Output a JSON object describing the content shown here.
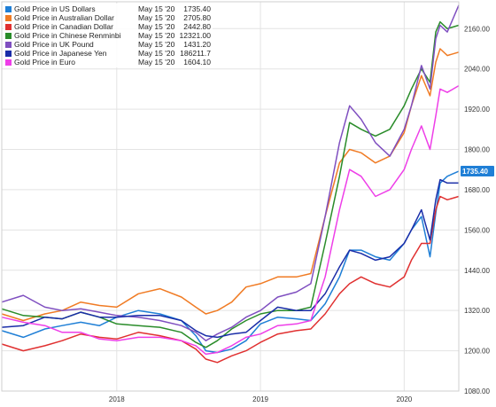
{
  "chart_data": {
    "type": "line",
    "grid": true,
    "legend_position": "top-left",
    "y_axis_position": "right",
    "ylim": [
      1080,
      2240
    ],
    "y_ticks": [
      "1080.00",
      "1200.00",
      "1320.00",
      "1440.00",
      "1560.00",
      "1680.00",
      "1800.00",
      "1920.00",
      "2040.00",
      "2160.00"
    ],
    "x_ticks": [
      "2018",
      "2019",
      "2020"
    ],
    "x_range": [
      2017.2,
      2020.38
    ],
    "current_label": {
      "value": "1735.40",
      "color": "#1f7fd6"
    },
    "series": [
      {
        "name": "Gold Price in US Dollars",
        "date": "May 15 '20",
        "last": "1735.40",
        "color": "#1f7fd6",
        "x": [
          2017.2,
          2017.35,
          2017.5,
          2017.62,
          2017.75,
          2017.88,
          2018.0,
          2018.15,
          2018.3,
          2018.45,
          2018.55,
          2018.62,
          2018.7,
          2018.8,
          2018.9,
          2019.0,
          2019.12,
          2019.25,
          2019.35,
          2019.45,
          2019.55,
          2019.62,
          2019.7,
          2019.8,
          2019.9,
          2020.0,
          2020.05,
          2020.12,
          2020.18,
          2020.22,
          2020.25,
          2020.3,
          2020.38
        ],
        "y": [
          1260,
          1240,
          1265,
          1275,
          1285,
          1275,
          1300,
          1320,
          1310,
          1290,
          1245,
          1200,
          1195,
          1205,
          1230,
          1280,
          1300,
          1295,
          1290,
          1340,
          1420,
          1500,
          1500,
          1480,
          1470,
          1520,
          1560,
          1600,
          1480,
          1610,
          1700,
          1720,
          1735
        ]
      },
      {
        "name": "Gold Price in Australian Dollar",
        "date": "May 15 '20",
        "last": "2705.80",
        "color": "#f07b24",
        "x": [
          2017.2,
          2017.35,
          2017.5,
          2017.62,
          2017.75,
          2017.88,
          2018.0,
          2018.15,
          2018.3,
          2018.45,
          2018.55,
          2018.62,
          2018.7,
          2018.8,
          2018.9,
          2019.0,
          2019.12,
          2019.25,
          2019.35,
          2019.45,
          2019.55,
          2019.62,
          2019.7,
          2019.8,
          2019.9,
          2020.0,
          2020.05,
          2020.12,
          2020.18,
          2020.22,
          2020.25,
          2020.3,
          2020.38
        ],
        "y": [
          1310,
          1290,
          1310,
          1320,
          1345,
          1335,
          1330,
          1370,
          1385,
          1360,
          1330,
          1310,
          1320,
          1345,
          1390,
          1400,
          1420,
          1420,
          1430,
          1600,
          1760,
          1800,
          1790,
          1760,
          1780,
          1850,
          1930,
          2020,
          1960,
          2060,
          2100,
          2080,
          2090
        ]
      },
      {
        "name": "Gold Price in Canadian Dollar",
        "date": "May 15 '20",
        "last": "2442.80",
        "color": "#e03030",
        "x": [
          2017.2,
          2017.35,
          2017.5,
          2017.62,
          2017.75,
          2017.88,
          2018.0,
          2018.15,
          2018.3,
          2018.45,
          2018.55,
          2018.62,
          2018.7,
          2018.8,
          2018.9,
          2019.0,
          2019.12,
          2019.25,
          2019.35,
          2019.45,
          2019.55,
          2019.62,
          2019.7,
          2019.8,
          2019.9,
          2020.0,
          2020.05,
          2020.12,
          2020.18,
          2020.22,
          2020.25,
          2020.3,
          2020.38
        ],
        "y": [
          1220,
          1200,
          1215,
          1230,
          1250,
          1240,
          1235,
          1255,
          1245,
          1230,
          1205,
          1175,
          1165,
          1185,
          1200,
          1225,
          1250,
          1260,
          1265,
          1310,
          1370,
          1400,
          1420,
          1400,
          1390,
          1420,
          1470,
          1520,
          1520,
          1620,
          1660,
          1650,
          1660
        ]
      },
      {
        "name": "Gold Price in Chinese Renminbi",
        "date": "May 15 '20",
        "last": "12321.00",
        "color": "#2a8c2a",
        "x": [
          2017.2,
          2017.35,
          2017.5,
          2017.62,
          2017.75,
          2017.88,
          2018.0,
          2018.15,
          2018.3,
          2018.45,
          2018.55,
          2018.62,
          2018.7,
          2018.8,
          2018.9,
          2019.0,
          2019.12,
          2019.25,
          2019.35,
          2019.45,
          2019.55,
          2019.62,
          2019.7,
          2019.8,
          2019.9,
          2020.0,
          2020.05,
          2020.12,
          2020.18,
          2020.22,
          2020.25,
          2020.3,
          2020.38
        ],
        "y": [
          1325,
          1305,
          1300,
          1295,
          1315,
          1300,
          1280,
          1275,
          1270,
          1255,
          1225,
          1210,
          1230,
          1265,
          1290,
          1310,
          1320,
          1320,
          1330,
          1520,
          1720,
          1880,
          1860,
          1840,
          1860,
          1930,
          1980,
          2040,
          2000,
          2150,
          2180,
          2160,
          2170
        ]
      },
      {
        "name": "Gold Price in UK Pound",
        "date": "May 15 '20",
        "last": "1431.20",
        "color": "#7f4fc0",
        "x": [
          2017.2,
          2017.35,
          2017.5,
          2017.62,
          2017.75,
          2017.88,
          2018.0,
          2018.15,
          2018.3,
          2018.45,
          2018.55,
          2018.62,
          2018.7,
          2018.8,
          2018.9,
          2019.0,
          2019.12,
          2019.25,
          2019.35,
          2019.45,
          2019.55,
          2019.62,
          2019.7,
          2019.8,
          2019.9,
          2020.0,
          2020.05,
          2020.12,
          2020.18,
          2020.22,
          2020.25,
          2020.3,
          2020.38
        ],
        "y": [
          1345,
          1365,
          1330,
          1320,
          1325,
          1315,
          1305,
          1300,
          1290,
          1275,
          1255,
          1230,
          1250,
          1270,
          1300,
          1320,
          1360,
          1375,
          1400,
          1600,
          1820,
          1930,
          1890,
          1820,
          1780,
          1860,
          1930,
          2050,
          1980,
          2130,
          2170,
          2150,
          2230
        ]
      },
      {
        "name": "Gold Price in Japanese Yen",
        "date": "May 15 '20",
        "last": "186211.7",
        "color": "#1a2da8",
        "x": [
          2017.2,
          2017.35,
          2017.5,
          2017.62,
          2017.75,
          2017.88,
          2018.0,
          2018.15,
          2018.3,
          2018.45,
          2018.55,
          2018.62,
          2018.7,
          2018.8,
          2018.9,
          2019.0,
          2019.12,
          2019.25,
          2019.35,
          2019.45,
          2019.55,
          2019.62,
          2019.7,
          2019.8,
          2019.9,
          2020.0,
          2020.05,
          2020.12,
          2020.18,
          2020.22,
          2020.25,
          2020.3,
          2020.38
        ],
        "y": [
          1270,
          1275,
          1300,
          1295,
          1315,
          1300,
          1300,
          1305,
          1305,
          1290,
          1260,
          1245,
          1240,
          1250,
          1255,
          1290,
          1330,
          1320,
          1320,
          1370,
          1450,
          1500,
          1490,
          1470,
          1480,
          1520,
          1560,
          1620,
          1530,
          1650,
          1710,
          1700,
          1700
        ]
      },
      {
        "name": "Gold Price in Euro",
        "date": "May 15 '20",
        "last": "1604.10",
        "color": "#ee3ee8",
        "x": [
          2017.2,
          2017.35,
          2017.5,
          2017.62,
          2017.75,
          2017.88,
          2018.0,
          2018.15,
          2018.3,
          2018.45,
          2018.55,
          2018.62,
          2018.7,
          2018.8,
          2018.9,
          2019.0,
          2019.12,
          2019.25,
          2019.35,
          2019.45,
          2019.55,
          2019.62,
          2019.7,
          2019.8,
          2019.9,
          2020.0,
          2020.05,
          2020.12,
          2020.18,
          2020.22,
          2020.25,
          2020.3,
          2020.38
        ],
        "y": [
          1300,
          1285,
          1275,
          1255,
          1255,
          1235,
          1230,
          1240,
          1240,
          1230,
          1215,
          1190,
          1195,
          1215,
          1240,
          1250,
          1275,
          1280,
          1290,
          1420,
          1620,
          1740,
          1720,
          1660,
          1680,
          1740,
          1800,
          1870,
          1800,
          1900,
          1980,
          1970,
          1990
        ]
      }
    ]
  }
}
